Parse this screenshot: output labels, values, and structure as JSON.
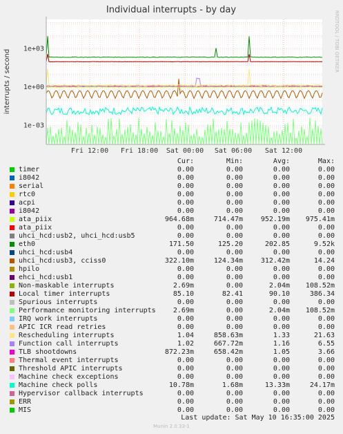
{
  "chart_data": {
    "type": "line",
    "title": "Individual interrupts - by day",
    "ylabel": "interrupts / second",
    "yscale": "log",
    "yticks": [
      "1e-03",
      "1e+00",
      "1e+03"
    ],
    "xticks": [
      "Fri 12:00",
      "Fri 18:00",
      "Sat 00:00",
      "Sat 06:00",
      "Sat 12:00"
    ],
    "ylim": [
      3.2e-05,
      180000
    ],
    "grid": true,
    "legend_placement": "below",
    "watermark": "RRDTOOL / TOBI OETIKER",
    "series": [
      {
        "name": "timer",
        "color": "#00cc00",
        "values": [
          0,
          0,
          0,
          0
        ]
      },
      {
        "name": "i8042",
        "color": "#0066b3",
        "values": [
          0,
          0,
          0,
          0
        ]
      },
      {
        "name": "serial",
        "color": "#ff8000",
        "values": [
          0,
          0,
          0,
          0
        ]
      },
      {
        "name": "rtc0",
        "color": "#ffcc00",
        "values": [
          0,
          0,
          0,
          0
        ]
      },
      {
        "name": "acpi",
        "color": "#330099",
        "values": [
          0,
          0,
          0,
          0
        ]
      },
      {
        "name": "i8042",
        "color": "#990099",
        "values": [
          0,
          0,
          0,
          0
        ]
      },
      {
        "name": "ata_piix",
        "color": "#ccff00",
        "values": [
          0.96468,
          0.71447,
          0.95219,
          0.97541
        ]
      },
      {
        "name": "ata_piix",
        "color": "#ff0000",
        "values": [
          0,
          0,
          0,
          0
        ]
      },
      {
        "name": "uhci_hcd:usb2, uhci_hcd:usb5",
        "color": "#808080",
        "values": [
          0,
          0,
          0,
          0
        ]
      },
      {
        "name": "eth0",
        "color": "#008f00",
        "values": [
          171.5,
          125.2,
          202.85,
          9520
        ]
      },
      {
        "name": "uhci_hcd:usb4",
        "color": "#00487d",
        "values": [
          0,
          0,
          0,
          0
        ]
      },
      {
        "name": "uhci_hcd:usb3, cciss0",
        "color": "#b35a00",
        "values": [
          0.3221,
          0.12434,
          0.31242,
          14.24
        ]
      },
      {
        "name": "hpilo",
        "color": "#b38f00",
        "values": [
          0,
          0,
          0,
          0
        ]
      },
      {
        "name": "ehci_hcd:usb1",
        "color": "#6b006b",
        "values": [
          0,
          0,
          0,
          0
        ]
      },
      {
        "name": "Non-maskable interrupts",
        "color": "#8fb300",
        "values": [
          0.00269,
          0,
          0.00204,
          0.10852
        ]
      },
      {
        "name": "Local timer interrupts",
        "color": "#b30000",
        "values": [
          85.1,
          82.41,
          90.1,
          386.34
        ]
      },
      {
        "name": "Spurious interrupts",
        "color": "#bebebe",
        "values": [
          0,
          0,
          0,
          0
        ]
      },
      {
        "name": "Performance monitoring interrupts",
        "color": "#80ff80",
        "values": [
          0.00269,
          0,
          0.00204,
          0.10852
        ]
      },
      {
        "name": "IRQ work interrupts",
        "color": "#80c9ff",
        "values": [
          0,
          0,
          0,
          0
        ]
      },
      {
        "name": "APIC ICR read retries",
        "color": "#ffc080",
        "values": [
          0,
          0,
          0,
          0
        ]
      },
      {
        "name": "Rescheduling interrupts",
        "color": "#ffe680",
        "values": [
          1.04,
          0.85863,
          1.33,
          21.63
        ]
      },
      {
        "name": "Function call interrupts",
        "color": "#aa80ff",
        "values": [
          1.02,
          0.66772,
          1.16,
          6.55
        ]
      },
      {
        "name": "TLB shootdowns",
        "color": "#ee00cc",
        "values": [
          0.87223,
          0.65842,
          1.05,
          3.66
        ]
      },
      {
        "name": "Thermal event interrupts",
        "color": "#ff8080",
        "values": [
          0,
          0,
          0,
          0
        ]
      },
      {
        "name": "Threshold APIC interrupts",
        "color": "#666600",
        "values": [
          0,
          0,
          0,
          0
        ]
      },
      {
        "name": "Machine check exceptions",
        "color": "#ffbfff",
        "values": [
          0,
          0,
          0,
          0
        ]
      },
      {
        "name": "Machine check polls",
        "color": "#00ffcc",
        "values": [
          0.01078,
          0.00168,
          0.01333,
          0.02417
        ]
      },
      {
        "name": "Hypervisor callback interrupts",
        "color": "#cc6699",
        "values": [
          0,
          0,
          0,
          0
        ]
      },
      {
        "name": "ERR",
        "color": "#999900",
        "values": [
          0,
          0,
          0,
          0
        ]
      },
      {
        "name": "MIS",
        "color": "#00cc00",
        "values": [
          0,
          0,
          0,
          0
        ]
      }
    ]
  },
  "legend": {
    "headers": [
      "Cur:",
      "Min:",
      "Avg:",
      "Max:"
    ],
    "rows": [
      {
        "name": "timer",
        "cur": "0.00",
        "min": "0.00",
        "avg": "0.00",
        "max": "0.00"
      },
      {
        "name": "i8042",
        "cur": "0.00",
        "min": "0.00",
        "avg": "0.00",
        "max": "0.00"
      },
      {
        "name": "serial",
        "cur": "0.00",
        "min": "0.00",
        "avg": "0.00",
        "max": "0.00"
      },
      {
        "name": "rtc0",
        "cur": "0.00",
        "min": "0.00",
        "avg": "0.00",
        "max": "0.00"
      },
      {
        "name": "acpi",
        "cur": "0.00",
        "min": "0.00",
        "avg": "0.00",
        "max": "0.00"
      },
      {
        "name": "i8042",
        "cur": "0.00",
        "min": "0.00",
        "avg": "0.00",
        "max": "0.00"
      },
      {
        "name": "ata_piix",
        "cur": "964.68m",
        "min": "714.47m",
        "avg": "952.19m",
        "max": "975.41m"
      },
      {
        "name": "ata_piix",
        "cur": "0.00",
        "min": "0.00",
        "avg": "0.00",
        "max": "0.00"
      },
      {
        "name": "uhci_hcd:usb2, uhci_hcd:usb5",
        "cur": "0.00",
        "min": "0.00",
        "avg": "0.00",
        "max": "0.00"
      },
      {
        "name": "eth0",
        "cur": "171.50",
        "min": "125.20",
        "avg": "202.85",
        "max": "9.52k"
      },
      {
        "name": "uhci_hcd:usb4",
        "cur": "0.00",
        "min": "0.00",
        "avg": "0.00",
        "max": "0.00"
      },
      {
        "name": "uhci_hcd:usb3, cciss0",
        "cur": "322.10m",
        "min": "124.34m",
        "avg": "312.42m",
        "max": "14.24"
      },
      {
        "name": "hpilo",
        "cur": "0.00",
        "min": "0.00",
        "avg": "0.00",
        "max": "0.00"
      },
      {
        "name": "ehci_hcd:usb1",
        "cur": "0.00",
        "min": "0.00",
        "avg": "0.00",
        "max": "0.00"
      },
      {
        "name": "Non-maskable interrupts",
        "cur": "2.69m",
        "min": "0.00",
        "avg": "2.04m",
        "max": "108.52m"
      },
      {
        "name": "Local timer interrupts",
        "cur": "85.10",
        "min": "82.41",
        "avg": "90.10",
        "max": "386.34"
      },
      {
        "name": "Spurious interrupts",
        "cur": "0.00",
        "min": "0.00",
        "avg": "0.00",
        "max": "0.00"
      },
      {
        "name": "Performance monitoring interrupts",
        "cur": "2.69m",
        "min": "0.00",
        "avg": "2.04m",
        "max": "108.52m"
      },
      {
        "name": "IRQ work interrupts",
        "cur": "0.00",
        "min": "0.00",
        "avg": "0.00",
        "max": "0.00"
      },
      {
        "name": "APIC ICR read retries",
        "cur": "0.00",
        "min": "0.00",
        "avg": "0.00",
        "max": "0.00"
      },
      {
        "name": "Rescheduling interrupts",
        "cur": "1.04",
        "min": "858.63m",
        "avg": "1.33",
        "max": "21.63"
      },
      {
        "name": "Function call interrupts",
        "cur": "1.02",
        "min": "667.72m",
        "avg": "1.16",
        "max": "6.55"
      },
      {
        "name": "TLB shootdowns",
        "cur": "872.23m",
        "min": "658.42m",
        "avg": "1.05",
        "max": "3.66"
      },
      {
        "name": "Thermal event interrupts",
        "cur": "0.00",
        "min": "0.00",
        "avg": "0.00",
        "max": "0.00"
      },
      {
        "name": "Threshold APIC interrupts",
        "cur": "0.00",
        "min": "0.00",
        "avg": "0.00",
        "max": "0.00"
      },
      {
        "name": "Machine check exceptions",
        "cur": "0.00",
        "min": "0.00",
        "avg": "0.00",
        "max": "0.00"
      },
      {
        "name": "Machine check polls",
        "cur": "10.78m",
        "min": "1.68m",
        "avg": "13.33m",
        "max": "24.17m"
      },
      {
        "name": "Hypervisor callback interrupts",
        "cur": "0.00",
        "min": "0.00",
        "avg": "0.00",
        "max": "0.00"
      },
      {
        "name": "ERR",
        "cur": "0.00",
        "min": "0.00",
        "avg": "0.00",
        "max": "0.00"
      },
      {
        "name": "MIS",
        "cur": "0.00",
        "min": "0.00",
        "avg": "0.00",
        "max": "0.00"
      }
    ]
  },
  "footer": {
    "last_update": "Last update:  Sat May 10 16:35:00 2025",
    "version": "Munin 2.0.33-1"
  }
}
